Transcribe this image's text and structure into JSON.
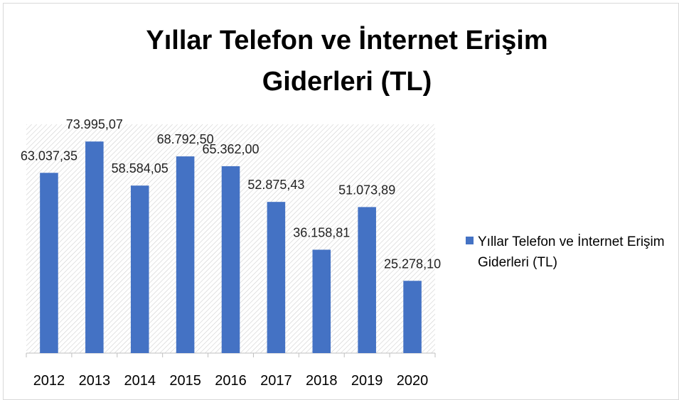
{
  "chart_data": {
    "type": "bar",
    "title": "Yıllar Telefon ve İnternet Erişim Giderleri (TL)",
    "categories": [
      "2012",
      "2013",
      "2014",
      "2015",
      "2016",
      "2017",
      "2018",
      "2019",
      "2020"
    ],
    "series": [
      {
        "name": "Yıllar Telefon ve İnternet Erişim Giderleri (TL)",
        "color": "#4472c4",
        "values": [
          63037.35,
          73995.07,
          58584.05,
          68792.5,
          65362.0,
          52875.43,
          36158.81,
          51073.89,
          25278.1
        ],
        "value_labels": [
          "63.037,35",
          "73.995,07",
          "58.584,05",
          "68.792,50",
          "65.362,00",
          "52.875,43",
          "36.158,81",
          "51.073,89",
          "25.278,10"
        ]
      }
    ],
    "ylim": [
      0,
      80000
    ],
    "legend": "right"
  }
}
